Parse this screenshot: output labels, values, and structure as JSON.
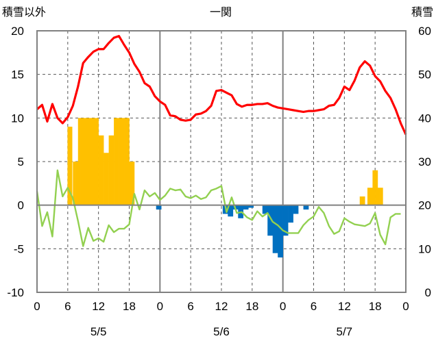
{
  "chart_data": {
    "type": "bar+line",
    "title": "一関",
    "left_axis_label": "積雪以外",
    "right_axis_label": "積雪",
    "ylim_left": [
      -10,
      20
    ],
    "ylim_right": [
      0,
      60
    ],
    "yticks_left": [
      "20",
      "15",
      "10",
      "5",
      "0",
      "-5",
      "-10"
    ],
    "yticks_right": [
      "60",
      "50",
      "40",
      "30",
      "20",
      "10",
      "0"
    ],
    "xlim_hours": [
      0,
      72
    ],
    "xticks": [
      "0",
      "6",
      "12",
      "18",
      "0",
      "6",
      "12",
      "18",
      "0",
      "6",
      "12",
      "18",
      "0"
    ],
    "date_labels": [
      "5/5",
      "5/6",
      "5/7"
    ],
    "series": [
      {
        "type": "line",
        "color": "#ff0000",
        "axis": "left",
        "values": [
          11,
          11.5,
          9.6,
          11.6,
          10,
          9.4,
          10.1,
          11.4,
          13.6,
          16.3,
          17,
          17.6,
          17.9,
          17.9,
          18.6,
          19.2,
          19.4,
          18.4,
          17.5,
          16.2,
          15.3,
          14,
          13.6,
          12.5,
          11.9,
          11.5,
          10.3,
          10.2,
          9.8,
          9.7,
          9.8,
          10.4,
          10.5,
          10.8,
          11.4,
          13.1,
          13.2,
          12.9,
          12.6,
          11.6,
          11.3,
          11.5,
          11.5,
          11.6,
          11.6,
          11.7,
          11.4,
          11.2,
          11.1,
          11,
          10.9,
          10.8,
          10.7,
          10.8,
          10.8,
          10.9,
          11,
          11.4,
          11.5,
          12.3,
          13.6,
          13.2,
          14.3,
          15.8,
          16.5,
          16,
          14.8,
          14.2,
          13.1,
          12.3,
          11,
          9.4,
          8.1
        ]
      },
      {
        "type": "line",
        "color": "#92d050",
        "axis": "left",
        "values": [
          1.6,
          -2.4,
          -0.8,
          -3.6,
          4,
          1,
          2,
          0.8,
          -1.8,
          -4.7,
          -2.6,
          -4.1,
          -3.8,
          -4.2,
          -2.3,
          -3.1,
          -2.7,
          -2.7,
          -2.2,
          1.3,
          -0.5,
          1.7,
          1,
          1.4,
          0.6,
          1.1,
          1.9,
          1.7,
          1.8,
          1,
          0.8,
          1.1,
          0.7,
          0.9,
          1.7,
          1.9,
          2.2,
          -0.8,
          0.9,
          -0.9,
          -0.8,
          -1.4,
          -1.7,
          -0.7,
          -1.3,
          -0.9,
          -1.9,
          -2.3,
          -2.9,
          -3.2,
          -3.2,
          -3.2,
          -2.3,
          -1.7,
          -1.3,
          -0.2,
          -0.9,
          -2.4,
          -3.3,
          -3,
          -1.5,
          -1.9,
          -2.2,
          -2.3,
          -2.4,
          -2.1,
          -0.9,
          -3.4,
          -4.5,
          -1.4,
          -1,
          -1
        ]
      },
      {
        "type": "bar",
        "color": "#ffc000",
        "axis": "left",
        "x": [
          6.2,
          6.6,
          7.25,
          7.75,
          8.25,
          8.75,
          9.25,
          9.75,
          10.25,
          10.75,
          11.25,
          11.75,
          12.25,
          12.75,
          13.25,
          13.75,
          14.25,
          14.75,
          15.25,
          15.75,
          16.25,
          16.75,
          17.25,
          17.75,
          18.25,
          18.75,
          63.25,
          63.75,
          64.75,
          65.25,
          65.75,
          66.25,
          66.75,
          67.25
        ],
        "values": [
          9,
          9,
          5,
          5,
          10,
          10,
          10,
          10,
          10,
          10,
          10,
          10,
          8,
          8,
          6,
          6,
          8,
          8,
          10,
          10,
          10,
          10,
          10,
          10,
          5,
          5,
          1,
          1,
          2,
          2,
          4,
          4,
          2,
          2
        ]
      },
      {
        "type": "bar",
        "color": "#0070c0",
        "axis": "left",
        "x": [
          23.5,
          24,
          36.5,
          37,
          37.5,
          38,
          38.5,
          39,
          39.5,
          40,
          40.5,
          41,
          41.5,
          42,
          44.25,
          44.75,
          45.25,
          45.75,
          46.25,
          46.75,
          47.25,
          47.75,
          48.25,
          48.75,
          49.25,
          49.75,
          50.25,
          50.75,
          52.25,
          52.75
        ],
        "values": [
          -0.5,
          -0.5,
          -1,
          -1,
          -1.3,
          -1.3,
          -0.5,
          -0.5,
          -1.5,
          -1.5,
          -0.5,
          -0.5,
          -0.3,
          -0.3,
          -1,
          -1,
          -3.5,
          -3.5,
          -5.5,
          -5.5,
          -6,
          -6,
          -3.5,
          -3.5,
          -2,
          -2,
          -1,
          -1,
          -0.5,
          -0.5
        ]
      }
    ]
  }
}
